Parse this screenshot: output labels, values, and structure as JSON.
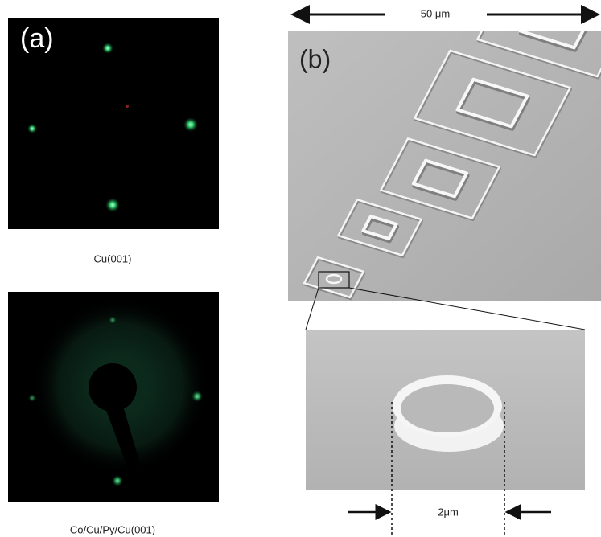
{
  "panel_a": {
    "label": "(a)",
    "top_caption": "Cu(001)",
    "bottom_caption": "Co/Cu/Py/Cu(001)"
  },
  "panel_b": {
    "label": "(b)",
    "scale_top": "50 μm",
    "scale_inset": "2μm"
  }
}
